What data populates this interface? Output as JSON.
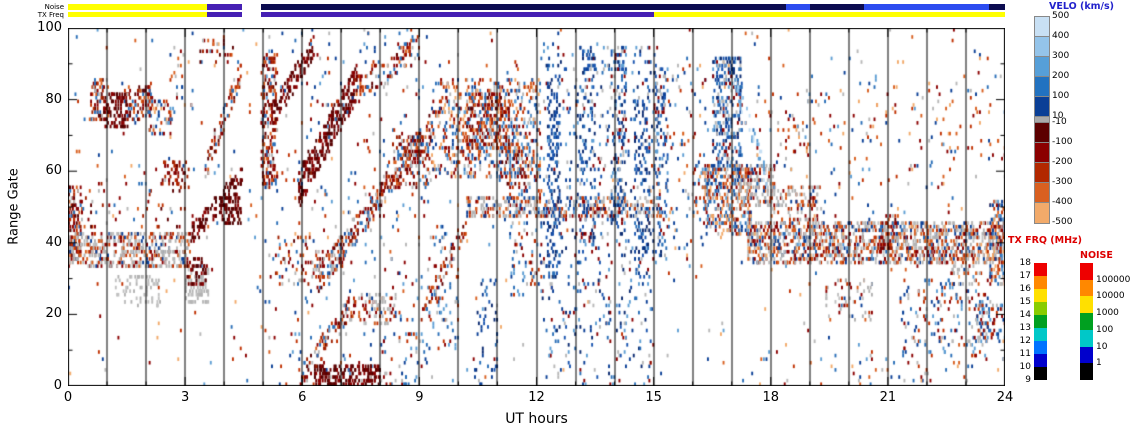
{
  "strips": {
    "noise_label": "Noise",
    "txfreq_label": "TX Freq",
    "noise_segments": [
      {
        "s": 0,
        "e": 3.55,
        "c": "#ffff00"
      },
      {
        "s": 3.55,
        "e": 4.45,
        "c": "#4620b4"
      },
      {
        "s": 4.95,
        "e": 18.4,
        "c": "#0c0c50"
      },
      {
        "s": 18.4,
        "e": 19.0,
        "c": "#2c4cf0"
      },
      {
        "s": 19.0,
        "e": 20.4,
        "c": "#0c0c50"
      },
      {
        "s": 20.4,
        "e": 23.6,
        "c": "#2c4cf0"
      },
      {
        "s": 23.6,
        "e": 24,
        "c": "#0c0c50"
      }
    ],
    "txfreq_segments": [
      {
        "s": 0,
        "e": 3.55,
        "c": "#ffff00"
      },
      {
        "s": 3.55,
        "e": 4.45,
        "c": "#4620b4"
      },
      {
        "s": 4.95,
        "e": 15.0,
        "c": "#4620b4"
      },
      {
        "s": 15.0,
        "e": 24,
        "c": "#ffff00"
      }
    ]
  },
  "axes": {
    "xlabel": "UT hours",
    "ylabel": "Range Gate",
    "x_range": [
      0,
      24
    ],
    "y_range": [
      0,
      100
    ],
    "x_major": [
      0,
      3,
      6,
      9,
      12,
      15,
      18,
      21,
      24
    ],
    "x_minor_every": 1,
    "y_major": [
      0,
      20,
      40,
      60,
      80,
      100
    ],
    "y_minor_every": 10
  },
  "colorbars": {
    "velocity": {
      "title": "VELO (km/s)",
      "title_color": "#2222cc",
      "labels": [
        "500",
        "400",
        "300",
        "200",
        "100",
        "10",
        "-10",
        "-100",
        "-200",
        "-300",
        "-400",
        "-500"
      ],
      "label_offsets": [
        0,
        20,
        40,
        60,
        80,
        100,
        106,
        126,
        146,
        166,
        186,
        206
      ],
      "segments": [
        {
          "color": "#c8e0f4",
          "h": 20
        },
        {
          "color": "#94c4ea",
          "h": 20
        },
        {
          "color": "#569fd8",
          "h": 20
        },
        {
          "color": "#2272c0",
          "h": 20
        },
        {
          "color": "#0a3f96",
          "h": 20
        },
        {
          "color": "#aaaaaa",
          "h": 6
        },
        {
          "color": "#5c0000",
          "h": 20
        },
        {
          "color": "#8b0000",
          "h": 20
        },
        {
          "color": "#b22800",
          "h": 20
        },
        {
          "color": "#d96020",
          "h": 20
        },
        {
          "color": "#f2aa6a",
          "h": 20
        }
      ]
    },
    "txfreq": {
      "title": "TX FRQ (MHz)",
      "title_color": "#dd0000",
      "labels": [
        "18",
        "17",
        "16",
        "15",
        "14",
        "13",
        "12",
        "11",
        "10",
        "9"
      ],
      "colors": [
        "#ee0000",
        "#ff8800",
        "#ffe000",
        "#88cc00",
        "#00a020",
        "#00c8c8",
        "#0072ff",
        "#0000cc",
        "#000000"
      ]
    },
    "noise": {
      "title": "NOISE",
      "title_color": "#dd0000",
      "labels": [
        "100000",
        "10000",
        "1000",
        "100",
        "10",
        "1"
      ],
      "colors": [
        "#ee0000",
        "#ff8800",
        "#ffe000",
        "#00a020",
        "#00c8c8",
        "#0000cc",
        "#000000"
      ]
    }
  },
  "chart_data": {
    "type": "heatmap",
    "description": "SuperDARN radar range-time plot of line-of-sight velocity (blue = positive, red = negative, gray = ground scatter) vs UT hour and range gate",
    "x_axis": {
      "label": "UT hours",
      "range": [
        0,
        24
      ],
      "major_ticks": [
        0,
        3,
        6,
        9,
        12,
        15,
        18,
        21,
        24
      ]
    },
    "y_axis": {
      "label": "Range Gate",
      "range": [
        0,
        100
      ],
      "major_ticks": [
        0,
        20,
        40,
        60,
        80,
        100
      ]
    },
    "time_resolution_hours": 0.0333,
    "gridlines_hours": [
      1,
      2,
      3,
      4,
      5,
      6,
      7,
      8,
      9,
      10,
      11,
      12,
      13,
      14,
      15,
      16,
      17,
      18,
      19,
      20,
      21,
      22,
      23
    ],
    "palettes": {
      "mix": [
        "#8b0000",
        "#c03000",
        "#d96020",
        "#0a3f96",
        "#2a6fb8",
        "#5f9fd4",
        "#b8b8b8",
        "#f2aa6a"
      ],
      "red_mix": [
        "#5c0000",
        "#8b0000",
        "#8b0000",
        "#a02000",
        "#c03000",
        "#d96020",
        "#2a6fb8",
        "#b8b8b8"
      ],
      "darkred": [
        "#500000",
        "#5c0000",
        "#6e0000",
        "#8b0000"
      ],
      "red": [
        "#6e0000",
        "#8b0000",
        "#a02000",
        "#b22800"
      ],
      "blue": [
        "#0a2a70",
        "#0a3f96",
        "#1a55b0",
        "#2a6fb8"
      ],
      "blue_mix": [
        "#0a3f96",
        "#2a6fb8",
        "#5f9fd4",
        "#8b0000",
        "#c03000",
        "#b8b8b8"
      ],
      "blue_dom": [
        "#0a2a70",
        "#0a3f96",
        "#1a55b0",
        "#2a6fb8",
        "#5f9fd4",
        "#8b0000",
        "#b8b8b8"
      ],
      "lightblue": [
        "#5f9fd4",
        "#94c4ea",
        "#c8e0f4"
      ],
      "gray": [
        "#b2b2b2",
        "#bababa",
        "#c2c2c2"
      ],
      "gray_mix": [
        "#b2b2b2",
        "#bababa",
        "#c2c2c2",
        "#b2b2b2",
        "#b2b2b2",
        "#8b0000",
        "#c03000",
        "#0a3f96",
        "#d96020"
      ]
    },
    "features": [
      {
        "h": [
          0,
          24
        ],
        "g": [
          0,
          100
        ],
        "d": 0.008,
        "p": "mix"
      },
      {
        "h": [
          0,
          0.35
        ],
        "g": [
          36,
          56
        ],
        "d": 0.55,
        "p": "red_mix"
      },
      {
        "h": [
          0,
          3.15
        ],
        "g": [
          33,
          43
        ],
        "d": 0.5,
        "p": "gray_mix"
      },
      {
        "h": [
          0.55,
          1.05
        ],
        "g": [
          74,
          86
        ],
        "d": 0.4,
        "p": "red_mix"
      },
      {
        "h": [
          0.9,
          1.55
        ],
        "g": [
          72,
          82
        ],
        "d": 0.5,
        "p": "darkred"
      },
      {
        "h": [
          1.45,
          2.15
        ],
        "g": [
          74,
          84
        ],
        "d": 0.45,
        "p": "red_mix"
      },
      {
        "h": [
          2.05,
          2.65
        ],
        "g": [
          70,
          80
        ],
        "d": 0.3,
        "p": "mix"
      },
      {
        "h": [
          1.2,
          2.4
        ],
        "g": [
          22,
          31
        ],
        "d": 0.2,
        "p": "gray"
      },
      {
        "h": [
          0.3,
          3.0
        ],
        "g": [
          44,
          58
        ],
        "d": 0.05,
        "p": "red_mix"
      },
      {
        "h": [
          2.4,
          3.1
        ],
        "g": [
          55,
          63
        ],
        "d": 0.28,
        "p": "red"
      },
      {
        "h": [
          2.6,
          3.2
        ],
        "g": [
          75,
          95
        ],
        "d": 0.06,
        "p": "mix"
      },
      {
        "h": [
          3.0,
          3.6
        ],
        "g": [
          23,
          33
        ],
        "d": 0.5,
        "p": "gray"
      },
      {
        "h": [
          3.05,
          3.55
        ],
        "g": [
          28,
          36
        ],
        "d": 0.4,
        "p": "darkred"
      },
      {
        "h": [
          3.15,
          4.45
        ],
        "g": [
          42,
          58
        ],
        "d": 0.5,
        "p": "darkred",
        "diag": true,
        "th": 6
      },
      {
        "h": [
          3.5,
          4.45
        ],
        "g": [
          60,
          88
        ],
        "d": 0.38,
        "p": "red_mix",
        "diag": true,
        "th": 7
      },
      {
        "h": [
          3.9,
          4.45
        ],
        "g": [
          45,
          53
        ],
        "d": 0.5,
        "p": "darkred"
      },
      {
        "h": [
          3.3,
          4.4
        ],
        "g": [
          90,
          97
        ],
        "d": 0.12,
        "p": "red_mix"
      },
      {
        "h": [
          4.95,
          5.35
        ],
        "g": [
          55,
          93
        ],
        "d": 0.45,
        "p": "red_mix"
      },
      {
        "h": [
          5.2,
          6.3
        ],
        "g": [
          75,
          95
        ],
        "d": 0.45,
        "p": "darkred",
        "diag": true,
        "th": 7
      },
      {
        "h": [
          5.9,
          7.4
        ],
        "g": [
          55,
          85
        ],
        "d": 0.6,
        "p": "darkred",
        "diag": true,
        "th": 10
      },
      {
        "h": [
          7.3,
          9.0
        ],
        "g": [
          82,
          95
        ],
        "d": 0.3,
        "p": "red_mix",
        "diag": true,
        "th": 7
      },
      {
        "h": [
          6.4,
          9.3
        ],
        "g": [
          30,
          72
        ],
        "d": 0.4,
        "p": "red_mix",
        "diag": true,
        "th": 8
      },
      {
        "h": [
          6.3,
          8.0
        ],
        "g": [
          0,
          6
        ],
        "d": 0.65,
        "p": "darkred"
      },
      {
        "h": [
          5.9,
          7.4
        ],
        "g": [
          2,
          24
        ],
        "d": 0.35,
        "p": "red_mix",
        "diag": true,
        "th": 6
      },
      {
        "h": [
          6.2,
          7.1
        ],
        "g": [
          30,
          38
        ],
        "d": 0.3,
        "p": "gray_mix"
      },
      {
        "h": [
          7.4,
          8.4
        ],
        "g": [
          17,
          26
        ],
        "d": 0.28,
        "p": "gray_mix"
      },
      {
        "h": [
          5.0,
          9.2
        ],
        "g": [
          0,
          100
        ],
        "d": 0.02,
        "p": "blue_mix"
      },
      {
        "h": [
          5.3,
          6.2
        ],
        "g": [
          28,
          42
        ],
        "d": 0.12,
        "p": "red_mix"
      },
      {
        "h": [
          8.3,
          9.3
        ],
        "g": [
          55,
          70
        ],
        "d": 0.25,
        "p": "red_mix"
      },
      {
        "h": [
          8.0,
          9.2
        ],
        "g": [
          0,
          15
        ],
        "d": 0.08,
        "p": "blue_mix"
      },
      {
        "h": [
          9.3,
          12.1
        ],
        "g": [
          58,
          86
        ],
        "d": 0.25,
        "p": "mix"
      },
      {
        "h": [
          10.2,
          11.3
        ],
        "g": [
          66,
          82
        ],
        "d": 0.45,
        "p": "red_mix"
      },
      {
        "h": [
          10.2,
          15.2
        ],
        "g": [
          47,
          53
        ],
        "d": 0.4,
        "p": "gray_mix"
      },
      {
        "h": [
          9.2,
          10.0
        ],
        "g": [
          10,
          45
        ],
        "d": 0.1,
        "p": "blue_mix"
      },
      {
        "h": [
          9.0,
          10.2
        ],
        "g": [
          18,
          45
        ],
        "d": 0.25,
        "p": "red_mix",
        "diag": true,
        "th": 6
      },
      {
        "h": [
          10.4,
          11.0
        ],
        "g": [
          0,
          30
        ],
        "d": 0.08,
        "p": "blue"
      },
      {
        "h": [
          11.3,
          12.2
        ],
        "g": [
          25,
          60
        ],
        "d": 0.12,
        "p": "blue_mix"
      },
      {
        "h": [
          11.0,
          11.8
        ],
        "g": [
          55,
          68
        ],
        "d": 0.25,
        "p": "red_mix"
      },
      {
        "h": [
          12.1,
          15.1
        ],
        "g": [
          15,
          95
        ],
        "d": 0.06,
        "p": "blue_dom"
      },
      {
        "h": [
          12.25,
          12.6
        ],
        "g": [
          30,
          90
        ],
        "d": 0.25,
        "p": "blue"
      },
      {
        "h": [
          13.1,
          13.5
        ],
        "g": [
          40,
          95
        ],
        "d": 0.2,
        "p": "blue_dom"
      },
      {
        "h": [
          13.9,
          14.3
        ],
        "g": [
          45,
          95
        ],
        "d": 0.25,
        "p": "blue_dom"
      },
      {
        "h": [
          14.5,
          14.9
        ],
        "g": [
          30,
          80
        ],
        "d": 0.2,
        "p": "blue"
      },
      {
        "h": [
          12.2,
          15.0
        ],
        "g": [
          0,
          18
        ],
        "d": 0.05,
        "p": "blue_dom"
      },
      {
        "h": [
          15.05,
          15.35
        ],
        "g": [
          35,
          90
        ],
        "d": 0.25,
        "p": "blue_dom"
      },
      {
        "h": [
          15.3,
          16.35
        ],
        "g": [
          30,
          90
        ],
        "d": 0.04,
        "p": "mix"
      },
      {
        "h": [
          16.5,
          17.25
        ],
        "g": [
          60,
          92
        ],
        "d": 0.4,
        "p": "blue_dom"
      },
      {
        "h": [
          16.3,
          17.5
        ],
        "g": [
          42,
          62
        ],
        "d": 0.45,
        "p": "mix"
      },
      {
        "h": [
          17.1,
          18.1
        ],
        "g": [
          50,
          62
        ],
        "d": 0.45,
        "p": "gray_mix"
      },
      {
        "h": [
          17.0,
          17.9
        ],
        "g": [
          88,
          58
        ],
        "d": 0.25,
        "p": "lightblue",
        "diag": true,
        "th": 6
      },
      {
        "h": [
          17.4,
          24.0
        ],
        "g": [
          34,
          46
        ],
        "d": 0.45,
        "p": "gray_mix"
      },
      {
        "h": [
          17.4,
          24.0
        ],
        "g": [
          35,
          45
        ],
        "d": 0.15,
        "p": "mix"
      },
      {
        "h": [
          18.0,
          19.2
        ],
        "g": [
          46,
          56
        ],
        "d": 0.28,
        "p": "gray_mix"
      },
      {
        "h": [
          17.5,
          24.0
        ],
        "g": [
          55,
          85
        ],
        "d": 0.025,
        "p": "mix"
      },
      {
        "h": [
          19.4,
          20.6
        ],
        "g": [
          18,
          30
        ],
        "d": 0.13,
        "p": "gray_mix"
      },
      {
        "h": [
          21.3,
          23.6
        ],
        "g": [
          8,
          30
        ],
        "d": 0.1,
        "p": "blue_mix"
      },
      {
        "h": [
          23.2,
          24.0
        ],
        "g": [
          12,
          24
        ],
        "d": 0.3,
        "p": "blue_mix"
      },
      {
        "h": [
          22.6,
          23.4
        ],
        "g": [
          28,
          34
        ],
        "d": 0.22,
        "p": "gray_mix"
      },
      {
        "h": [
          23.6,
          24.0
        ],
        "g": [
          28,
          52
        ],
        "d": 0.45,
        "p": "mix"
      },
      {
        "h": [
          17.5,
          24.0
        ],
        "g": [
          0,
          10
        ],
        "d": 0.02,
        "p": "mix"
      },
      {
        "h": [
          20.8,
          21.2
        ],
        "g": [
          38,
          48
        ],
        "d": 0.35,
        "p": "red_mix"
      },
      {
        "h": [
          18.3,
          19.0
        ],
        "g": [
          60,
          75
        ],
        "d": 0.08,
        "p": "mix"
      },
      {
        "h": [
          16.0,
          16.45
        ],
        "g": [
          45,
          62
        ],
        "d": 0.2,
        "p": "mix"
      }
    ]
  }
}
